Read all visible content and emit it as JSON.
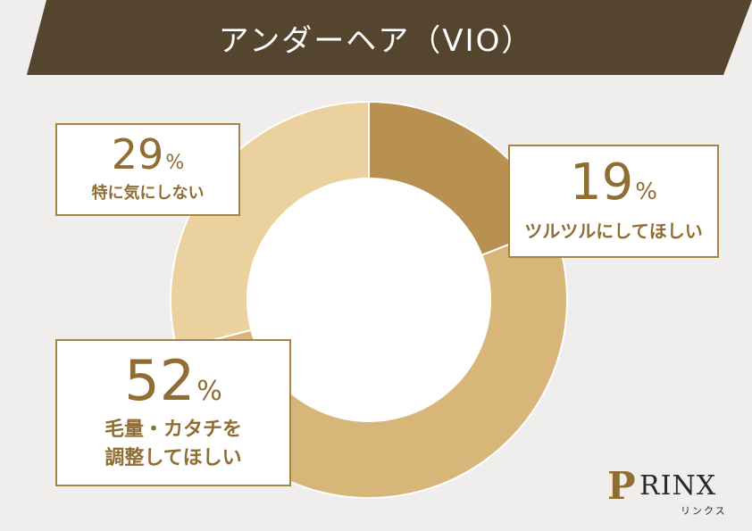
{
  "banner": {
    "title": "アンダーヘア（VIO）",
    "color": "#55452f"
  },
  "chart_data": {
    "type": "pie",
    "title": "アンダーヘア（VIO）",
    "start": "12 o'clock, clockwise",
    "slices": [
      {
        "label": "ツルツルにしてほしい",
        "value": 19,
        "color": "#b89150"
      },
      {
        "label": "毛量・カタチを調整してほしい",
        "value": 52,
        "color": "#d8b67a"
      },
      {
        "label": "特に気にしない",
        "value": 29,
        "color": "#ebd19e"
      }
    ]
  },
  "callouts": {
    "top_left": {
      "number": "29",
      "unit": "%",
      "label": "特に気にしない"
    },
    "top_right": {
      "number": "19",
      "unit": "%",
      "label": "ツルツルにしてほしい"
    },
    "bottom_left": {
      "number": "52",
      "unit": "%",
      "label_lines": [
        "毛量・カタチを",
        "調整してほしい"
      ]
    }
  },
  "logo": {
    "wordmark": "RINX",
    "mark": "P",
    "subtext": "リンクス",
    "accent": "#8f6d33"
  }
}
